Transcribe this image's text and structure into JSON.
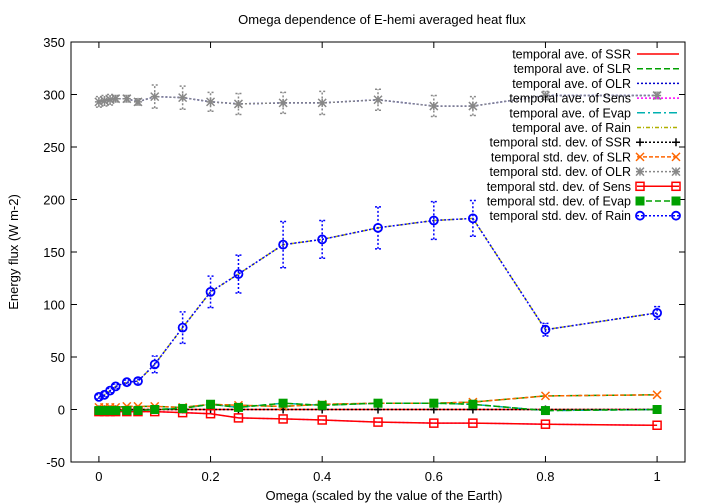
{
  "chart_data": {
    "type": "line",
    "title": "Omega dependence of E-hemi averaged heat flux",
    "xlabel": "Omega (scaled by the value of the Earth)",
    "ylabel": "Energy flux (W m-2)",
    "xlim": [
      -0.05,
      1.05
    ],
    "ylim": [
      -50,
      350
    ],
    "xticks": [
      0,
      0.2,
      0.4,
      0.6,
      0.8,
      1
    ],
    "xtick_labels": [
      "0",
      "0.2",
      "0.4",
      "0.6",
      "0.8",
      "1"
    ],
    "yticks": [
      -50,
      0,
      50,
      100,
      150,
      200,
      250,
      300,
      350
    ],
    "ytick_labels": [
      "-50",
      "0",
      "50",
      "100",
      "150",
      "200",
      "250",
      "300",
      "350"
    ],
    "legend_position": "top-right",
    "grid": false,
    "series": [
      {
        "name": "temporal ave. of SSR",
        "color": "#ff0000",
        "dash": "",
        "marker": "none",
        "x": [
          0,
          0.01,
          0.02,
          0.03,
          0.05,
          0.07,
          0.1,
          0.15,
          0.2,
          0.25,
          0.33,
          0.4,
          0.5,
          0.6,
          0.67,
          0.8,
          1
        ],
        "y": [
          0,
          0,
          0,
          0,
          0,
          0,
          0,
          0,
          0,
          0,
          0,
          0,
          0,
          0,
          0,
          0,
          0
        ]
      },
      {
        "name": "temporal ave. of SLR",
        "color": "#00a000",
        "dash": "6,3",
        "marker": "none",
        "x": [
          0,
          0.01,
          0.02,
          0.03,
          0.05,
          0.07,
          0.1,
          0.15,
          0.2,
          0.25,
          0.33,
          0.4,
          0.5,
          0.6,
          0.67,
          0.8,
          1
        ],
        "y": [
          2,
          2,
          2,
          2,
          3,
          3,
          3,
          2,
          5,
          4,
          3,
          5,
          6,
          6,
          7,
          13,
          14
        ]
      },
      {
        "name": "temporal ave. of OLR",
        "color": "#0000cc",
        "dash": "2,2",
        "marker": "none",
        "x": [
          0,
          0.01,
          0.02,
          0.03,
          0.05,
          0.07,
          0.1,
          0.15,
          0.2,
          0.25,
          0.33,
          0.4,
          0.5,
          0.6,
          0.67,
          0.8,
          1
        ],
        "y": [
          293,
          294,
          295,
          296,
          296,
          293,
          298,
          297,
          293,
          291,
          292,
          292,
          295,
          289,
          289,
          299,
          299
        ]
      },
      {
        "name": "temporal ave. of Sens",
        "color": "#ff00ff",
        "dash": "2,2",
        "marker": "none",
        "x": [
          0,
          0.01,
          0.02,
          0.03,
          0.05,
          0.07,
          0.1,
          0.15,
          0.2,
          0.25,
          0.33,
          0.4,
          0.5,
          0.6,
          0.67,
          0.8,
          1
        ],
        "y": [
          -2,
          -2,
          -2,
          -2,
          -2,
          -2,
          -2,
          -3,
          -4,
          -8,
          -9,
          -10,
          -12,
          -13,
          -13,
          -14,
          -15
        ]
      },
      {
        "name": "temporal ave. of Evap",
        "color": "#00b0b0",
        "dash": "8,3,2,3",
        "marker": "none",
        "x": [
          0,
          0.01,
          0.02,
          0.03,
          0.05,
          0.07,
          0.1,
          0.15,
          0.2,
          0.25,
          0.33,
          0.4,
          0.5,
          0.6,
          0.67,
          0.8,
          1
        ],
        "y": [
          -1,
          -1,
          -1,
          -1,
          -1,
          -1,
          0,
          1,
          5,
          2,
          6,
          4,
          6,
          6,
          5,
          -1,
          0
        ]
      },
      {
        "name": "temporal ave. of Rain",
        "color": "#b0b000",
        "dash": "4,2,1,2",
        "marker": "none",
        "x": [
          0,
          0.01,
          0.02,
          0.03,
          0.05,
          0.07,
          0.1,
          0.15,
          0.2,
          0.25,
          0.33,
          0.4,
          0.5,
          0.6,
          0.67,
          0.8,
          1
        ],
        "y": [
          12,
          14,
          18,
          22,
          26,
          27,
          43,
          78,
          112,
          129,
          157,
          162,
          173,
          180,
          182,
          76,
          92
        ]
      },
      {
        "name": "temporal std. dev. of SSR",
        "color": "#000000",
        "dash": "2,2",
        "marker": "plus",
        "x": [
          0,
          0.01,
          0.02,
          0.03,
          0.05,
          0.07,
          0.1,
          0.15,
          0.2,
          0.25,
          0.33,
          0.4,
          0.5,
          0.6,
          0.67,
          0.8,
          1
        ],
        "y": [
          0,
          0,
          0,
          0,
          0,
          0,
          0,
          0,
          0,
          0,
          0,
          0,
          0,
          0,
          0,
          0,
          0
        ]
      },
      {
        "name": "temporal std. dev. of SLR",
        "color": "#ff6600",
        "dash": "4,2",
        "marker": "x",
        "x": [
          0,
          0.01,
          0.02,
          0.03,
          0.05,
          0.07,
          0.1,
          0.15,
          0.2,
          0.25,
          0.33,
          0.4,
          0.5,
          0.6,
          0.67,
          0.8,
          1
        ],
        "y": [
          2,
          2,
          2,
          2,
          3,
          3,
          3,
          2,
          5,
          4,
          3,
          5,
          6,
          6,
          7,
          13,
          14
        ]
      },
      {
        "name": "temporal std. dev. of OLR",
        "color": "#888888",
        "dash": "2,2",
        "marker": "star",
        "x": [
          0,
          0.01,
          0.02,
          0.03,
          0.05,
          0.07,
          0.1,
          0.15,
          0.2,
          0.25,
          0.33,
          0.4,
          0.5,
          0.6,
          0.67,
          0.8,
          1
        ],
        "y": [
          293,
          294,
          295,
          296,
          296,
          293,
          298,
          297,
          293,
          291,
          292,
          292,
          295,
          289,
          289,
          299,
          299
        ]
      },
      {
        "name": "temporal std. dev. of Sens",
        "color": "#ff0000",
        "dash": "",
        "marker": "square",
        "x": [
          0,
          0.01,
          0.02,
          0.03,
          0.05,
          0.07,
          0.1,
          0.15,
          0.2,
          0.25,
          0.33,
          0.4,
          0.5,
          0.6,
          0.67,
          0.8,
          1
        ],
        "y": [
          -2,
          -2,
          -2,
          -2,
          -2,
          -2,
          -2,
          -3,
          -4,
          -8,
          -9,
          -10,
          -12,
          -13,
          -13,
          -14,
          -15
        ]
      },
      {
        "name": "temporal std. dev. of Evap",
        "color": "#00a000",
        "dash": "6,3",
        "marker": "filled-square",
        "x": [
          0,
          0.01,
          0.02,
          0.03,
          0.05,
          0.07,
          0.1,
          0.15,
          0.2,
          0.25,
          0.33,
          0.4,
          0.5,
          0.6,
          0.67,
          0.8,
          1
        ],
        "y": [
          -1,
          -1,
          -1,
          -1,
          -1,
          -1,
          0,
          1,
          5,
          2,
          6,
          4,
          6,
          6,
          5,
          -1,
          0
        ]
      },
      {
        "name": "temporal std. dev. of Rain",
        "color": "#0000ff",
        "dash": "2,2",
        "marker": "circle",
        "x": [
          0,
          0.01,
          0.02,
          0.03,
          0.05,
          0.07,
          0.1,
          0.15,
          0.2,
          0.25,
          0.33,
          0.4,
          0.5,
          0.6,
          0.67,
          0.8,
          1
        ],
        "y": [
          12,
          14,
          18,
          22,
          26,
          27,
          43,
          78,
          112,
          129,
          157,
          162,
          173,
          180,
          182,
          76,
          92
        ],
        "err": [
          2,
          2,
          2,
          2,
          2,
          3,
          8,
          15,
          15,
          18,
          22,
          18,
          20,
          18,
          17,
          6,
          6
        ]
      }
    ],
    "olr_err": [
      5,
      5,
      5,
      3,
      3,
      3,
      11,
      11,
      9,
      10,
      10,
      11,
      10,
      10,
      9,
      4,
      3
    ]
  }
}
